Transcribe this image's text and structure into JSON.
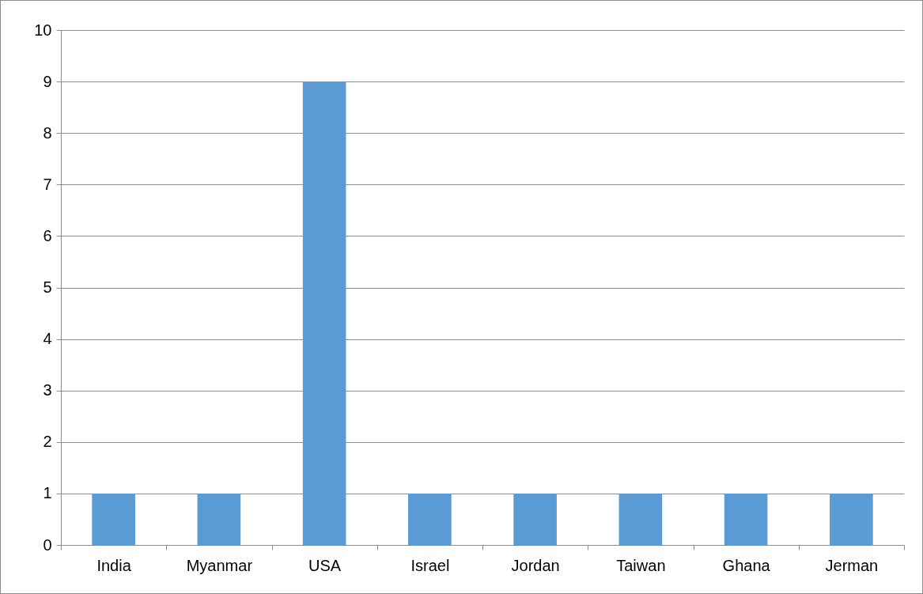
{
  "chart_data": {
    "type": "bar",
    "categories": [
      "India",
      "Myanmar",
      "USA",
      "Israel",
      "Jordan",
      "Taiwan",
      "Ghana",
      "Jerman"
    ],
    "values": [
      1,
      1,
      9,
      1,
      1,
      1,
      1,
      1
    ],
    "color": "#5b9bd5",
    "ylim": [
      0,
      10
    ],
    "yticks": [
      0,
      1,
      2,
      3,
      4,
      5,
      6,
      7,
      8,
      9,
      10
    ],
    "grid": "y"
  }
}
